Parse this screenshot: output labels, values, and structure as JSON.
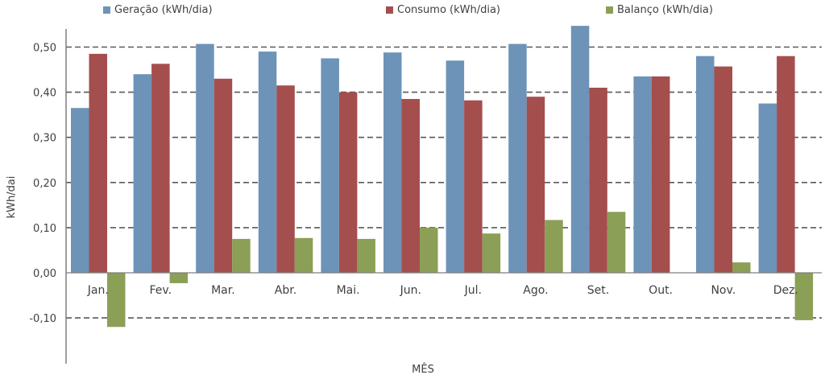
{
  "chart_data": {
    "type": "bar",
    "categories": [
      "Jan.",
      "Fev.",
      "Mar.",
      "Abr.",
      "Mai.",
      "Jun.",
      "Jul.",
      "Ago.",
      "Set.",
      "Out.",
      "Nov.",
      "Dez."
    ],
    "series": [
      {
        "name": "Geração (kWh/dia)",
        "color": "#6d93b8",
        "values": [
          0.365,
          0.44,
          0.507,
          0.49,
          0.475,
          0.488,
          0.47,
          0.507,
          0.547,
          0.435,
          0.48,
          0.375
        ]
      },
      {
        "name": "Consumo (kWh/dia)",
        "color": "#a54e4e",
        "values": [
          0.485,
          0.463,
          0.43,
          0.415,
          0.4,
          0.385,
          0.382,
          0.39,
          0.41,
          0.435,
          0.457,
          0.48
        ]
      },
      {
        "name": "Balanço (kWh/dia)",
        "color": "#8b9f56",
        "values": [
          -0.12,
          -0.023,
          0.075,
          0.077,
          0.075,
          0.1,
          0.087,
          0.117,
          0.135,
          0.0,
          0.023,
          -0.105
        ]
      }
    ],
    "xlabel": "MÊS",
    "ylabel": "kWh/dai",
    "ylim": [
      -0.18,
      0.55
    ],
    "yticks": [
      0.5,
      0.4,
      0.3,
      0.2,
      0.1,
      0.0,
      -0.1
    ],
    "ytick_labels": [
      "0,50",
      "0,40",
      "0,30",
      "0,20",
      "0,10",
      "0,00",
      "-0,10"
    ],
    "grid": "horizontal-dashed",
    "legend_position": "top"
  }
}
